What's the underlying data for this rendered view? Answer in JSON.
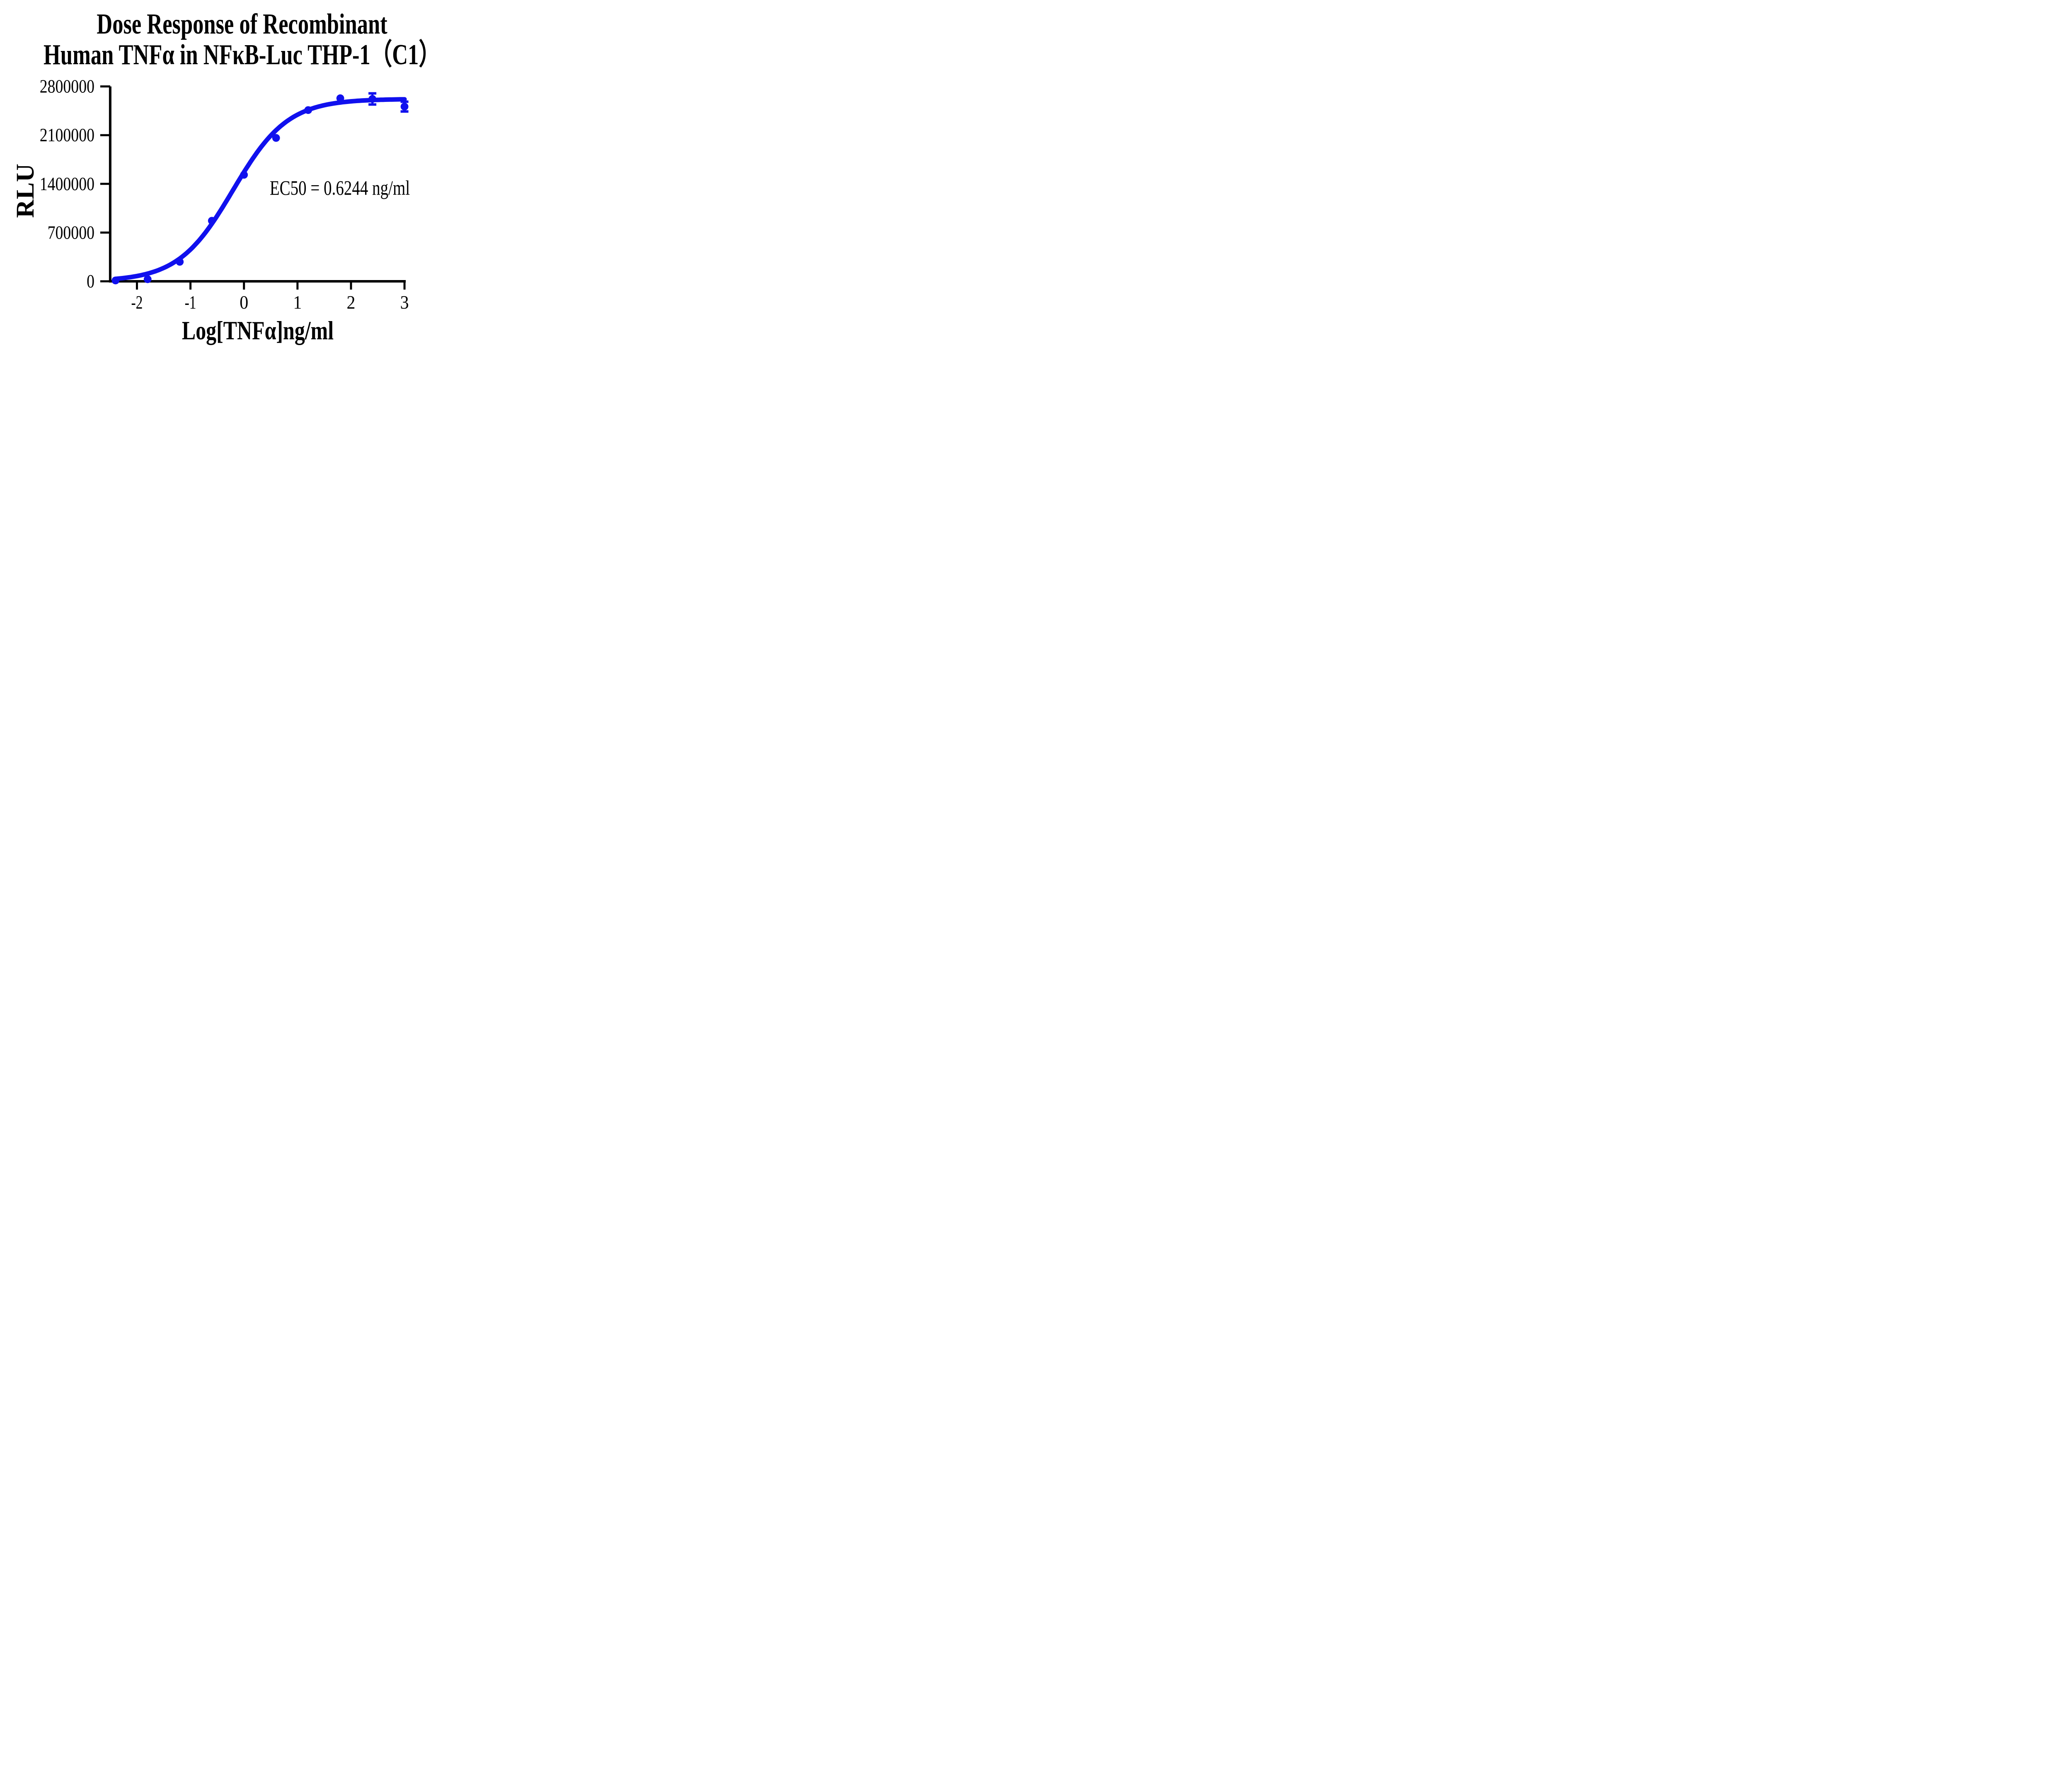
{
  "title": {
    "line1": "Dose Response of Recombinant",
    "line2": "Human TNFα in NFκB-Luc THP-1（C1）"
  },
  "annotation": {
    "ec50_label": "EC50 = 0.6244 ng/ml"
  },
  "axes": {
    "y_label": "RLU",
    "x_label": "Log[TNFα]ng/ml",
    "x_tick_labels": [
      "-2",
      "-1",
      "0",
      "1",
      "2",
      "3"
    ],
    "y_tick_labels": [
      "0",
      "700000",
      "1400000",
      "2100000",
      "2800000"
    ]
  },
  "colors": {
    "curve": "#1010ee",
    "axis": "#000000",
    "background": "#ffffff"
  },
  "chart_data": {
    "type": "scatter",
    "title": "Dose Response of Recombinant Human TNFα in NFκB-Luc THP-1（C1）",
    "xlabel": "Log[TNFα]ng/ml",
    "ylabel": "RLU",
    "x": [
      -2.4,
      -1.8,
      -1.2,
      -0.6,
      0,
      0.6,
      1.2,
      1.8,
      2.4,
      3
    ],
    "y": [
      12000,
      30000,
      280000,
      870000,
      1530000,
      2060000,
      2460000,
      2630000,
      2620000,
      2510000
    ],
    "y_error": [
      0,
      0,
      0,
      0,
      0,
      0,
      0,
      0,
      80000,
      70000
    ],
    "fit": {
      "model": "4PL-sigmoid",
      "bottom": 0,
      "top": 2620000,
      "logEC50": -0.2046,
      "hillslope": 0.85,
      "ec50_ng_ml": 0.6244
    },
    "xlim": [
      -2.5,
      3
    ],
    "ylim": [
      0,
      2800000
    ],
    "x_ticks": [
      -2,
      -1,
      0,
      1,
      2,
      3
    ],
    "y_ticks": [
      0,
      700000,
      1400000,
      2100000,
      2800000
    ],
    "grid": false,
    "legend": null
  }
}
